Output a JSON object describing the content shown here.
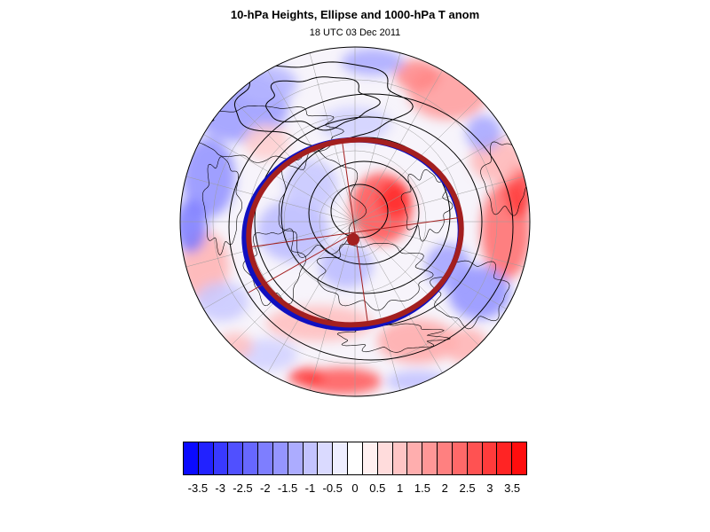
{
  "title": "10-hPa Heights, Ellipse and 1000-hPa T anom",
  "subtitle": "18 UTC 03 Dec 2011",
  "map": {
    "projection": "polar-stereographic-north",
    "features": [
      "temperature-anomaly-shading",
      "coastlines",
      "lat-lon-graticule",
      "height-contours",
      "fitted-ellipse",
      "blue-ellipse",
      "ellipse-axes",
      "ellipse-center-marker"
    ],
    "ellipse_color": "#a31f1f",
    "second_ellipse_color": "#1010c0"
  },
  "colorbar": {
    "labels": [
      "-3.5",
      "-3",
      "-2.5",
      "-2",
      "-1.5",
      "-1",
      "-0.5",
      "0",
      "0.5",
      "1",
      "1.5",
      "2",
      "2.5",
      "3",
      "3.5"
    ],
    "colors": [
      "#0a0aff",
      "#2222ff",
      "#3939ff",
      "#5050ff",
      "#6767ff",
      "#7e7eff",
      "#9595ff",
      "#acacff",
      "#c3c3ff",
      "#dadaff",
      "#eeeeff",
      "#ffffff",
      "#fff0f0",
      "#ffdcdc",
      "#ffc5c5",
      "#ffaeae",
      "#ff9797",
      "#ff8080",
      "#ff6969",
      "#ff5252",
      "#ff3b3b",
      "#ff2424",
      "#ff0d0d"
    ]
  }
}
